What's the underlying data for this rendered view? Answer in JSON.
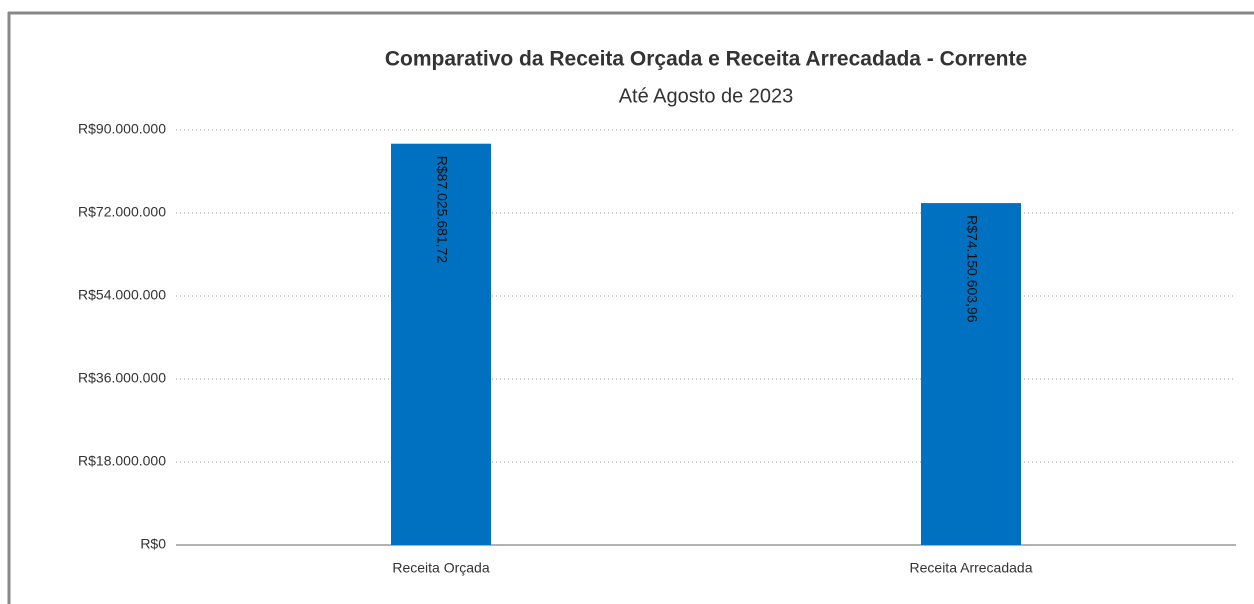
{
  "chart_data": {
    "type": "bar",
    "title": "Comparativo da Receita Orçada e Receita Arrecadada - Corrente",
    "subtitle": "Até Agosto de 2023",
    "categories": [
      "Receita Orçada",
      "Receita Arrecadada"
    ],
    "values": [
      87025681.72,
      74150603.96
    ],
    "value_labels": [
      "R$87.025.681,72",
      "R$74.150.603,96"
    ],
    "color": "#0070c0",
    "ylim": [
      0,
      90000000
    ],
    "yticks": [
      {
        "value": 0,
        "label": "R$0"
      },
      {
        "value": 18000000,
        "label": "R$18.000.000"
      },
      {
        "value": 36000000,
        "label": "R$36.000.000"
      },
      {
        "value": 54000000,
        "label": "R$54.000.000"
      },
      {
        "value": 72000000,
        "label": "R$72.000.000"
      },
      {
        "value": 90000000,
        "label": "R$90.000.000"
      }
    ],
    "grid": true
  }
}
